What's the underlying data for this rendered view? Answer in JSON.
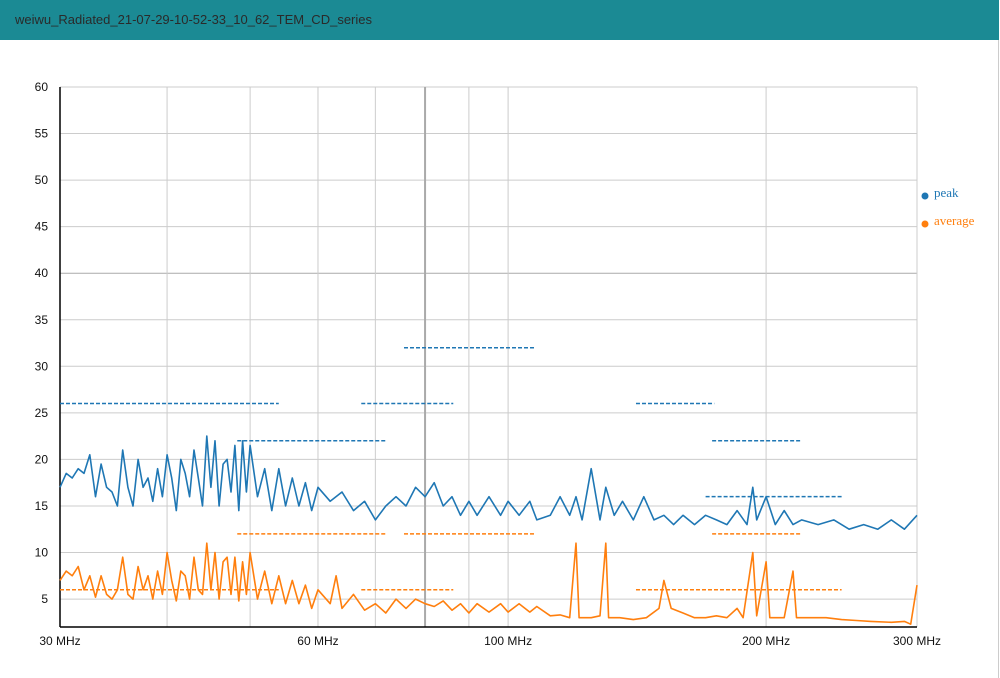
{
  "window": {
    "title": "weiwu_Radiated_21-07-29-10-52-33_10_62_TEM_CD_series"
  },
  "chart_data": {
    "type": "line",
    "xscale": "log",
    "xlim": [
      30,
      300
    ],
    "ylim": [
      2,
      60
    ],
    "grid": true,
    "legend_position": "right",
    "x_ticks": [
      {
        "v": 30,
        "label": "30 MHz"
      },
      {
        "v": 60,
        "label": "60 MHz"
      },
      {
        "v": 100,
        "label": "100 MHz"
      },
      {
        "v": 200,
        "label": "200 MHz"
      },
      {
        "v": 300,
        "label": "300 MHz"
      }
    ],
    "x_gridlines": [
      40,
      50,
      60,
      70,
      80,
      90,
      100,
      200
    ],
    "y_ticks": [
      5,
      10,
      15,
      20,
      25,
      30,
      35,
      40,
      45,
      50,
      55,
      60
    ],
    "colors": {
      "peak": "#1f77b4",
      "average": "#ff7f0e"
    },
    "series": [
      {
        "name": "peak",
        "color": "#1f77b4",
        "points": [
          [
            30,
            17
          ],
          [
            30.5,
            18.5
          ],
          [
            31,
            18
          ],
          [
            31.5,
            19
          ],
          [
            32,
            18.5
          ],
          [
            32.5,
            20.5
          ],
          [
            33,
            16
          ],
          [
            33.5,
            19.5
          ],
          [
            34,
            17
          ],
          [
            34.5,
            16.5
          ],
          [
            35,
            15
          ],
          [
            35.5,
            21
          ],
          [
            36,
            17
          ],
          [
            36.5,
            15
          ],
          [
            37,
            20
          ],
          [
            37.5,
            17
          ],
          [
            38,
            18
          ],
          [
            38.5,
            15.5
          ],
          [
            39,
            19
          ],
          [
            39.5,
            16
          ],
          [
            40,
            20.5
          ],
          [
            40.5,
            18
          ],
          [
            41,
            14.5
          ],
          [
            41.5,
            20
          ],
          [
            42,
            18.5
          ],
          [
            42.5,
            16
          ],
          [
            43,
            21
          ],
          [
            43.5,
            18
          ],
          [
            44,
            15
          ],
          [
            44.5,
            22.5
          ],
          [
            45,
            17
          ],
          [
            45.5,
            22
          ],
          [
            46,
            15
          ],
          [
            46.5,
            19.5
          ],
          [
            47,
            20
          ],
          [
            47.5,
            16.5
          ],
          [
            48,
            21.5
          ],
          [
            48.5,
            14.5
          ],
          [
            49,
            22
          ],
          [
            49.5,
            16.5
          ],
          [
            50,
            21.5
          ],
          [
            51,
            16
          ],
          [
            52,
            19
          ],
          [
            53,
            14.5
          ],
          [
            54,
            19
          ],
          [
            55,
            15
          ],
          [
            56,
            18
          ],
          [
            57,
            15
          ],
          [
            58,
            17.5
          ],
          [
            59,
            14.5
          ],
          [
            60,
            17
          ],
          [
            62,
            15.5
          ],
          [
            64,
            16.5
          ],
          [
            66,
            14.5
          ],
          [
            68,
            15.5
          ],
          [
            70,
            13.5
          ],
          [
            72,
            15
          ],
          [
            74,
            16
          ],
          [
            76,
            15
          ],
          [
            78,
            17
          ],
          [
            80,
            16
          ],
          [
            82,
            17.5
          ],
          [
            84,
            15
          ],
          [
            86,
            16
          ],
          [
            88,
            14
          ],
          [
            90,
            15.5
          ],
          [
            92,
            14
          ],
          [
            95,
            16
          ],
          [
            98,
            14
          ],
          [
            100,
            15.5
          ],
          [
            103,
            14
          ],
          [
            106,
            15.5
          ],
          [
            108,
            13.5
          ],
          [
            112,
            14
          ],
          [
            115,
            16
          ],
          [
            118,
            14
          ],
          [
            120,
            16
          ],
          [
            122,
            13.5
          ],
          [
            125,
            19
          ],
          [
            128,
            13.5
          ],
          [
            130,
            17
          ],
          [
            133,
            14
          ],
          [
            136,
            15.5
          ],
          [
            140,
            13.5
          ],
          [
            144,
            16
          ],
          [
            148,
            13.5
          ],
          [
            152,
            14
          ],
          [
            156,
            13
          ],
          [
            160,
            14
          ],
          [
            165,
            13
          ],
          [
            170,
            14
          ],
          [
            175,
            13.5
          ],
          [
            180,
            13
          ],
          [
            185,
            14.5
          ],
          [
            190,
            13
          ],
          [
            193,
            17
          ],
          [
            195,
            13.5
          ],
          [
            200,
            16
          ],
          [
            205,
            13
          ],
          [
            210,
            14.5
          ],
          [
            215,
            13
          ],
          [
            220,
            13.5
          ],
          [
            230,
            13
          ],
          [
            240,
            13.5
          ],
          [
            250,
            12.5
          ],
          [
            260,
            13
          ],
          [
            270,
            12.5
          ],
          [
            280,
            13.5
          ],
          [
            290,
            12.5
          ],
          [
            300,
            14
          ]
        ]
      },
      {
        "name": "average",
        "color": "#ff7f0e",
        "points": [
          [
            30,
            7
          ],
          [
            30.5,
            8
          ],
          [
            31,
            7.5
          ],
          [
            31.5,
            8.5
          ],
          [
            32,
            6
          ],
          [
            32.5,
            7.5
          ],
          [
            33,
            5.2
          ],
          [
            33.5,
            7.5
          ],
          [
            34,
            5.5
          ],
          [
            34.5,
            5
          ],
          [
            35,
            6
          ],
          [
            35.5,
            9.5
          ],
          [
            36,
            5.5
          ],
          [
            36.5,
            5
          ],
          [
            37,
            8.5
          ],
          [
            37.5,
            6
          ],
          [
            38,
            7.5
          ],
          [
            38.5,
            5
          ],
          [
            39,
            8
          ],
          [
            39.5,
            5.5
          ],
          [
            40,
            10
          ],
          [
            40.5,
            7
          ],
          [
            41,
            4.8
          ],
          [
            41.5,
            8
          ],
          [
            42,
            7.5
          ],
          [
            42.5,
            5
          ],
          [
            43,
            9.5
          ],
          [
            43.5,
            6
          ],
          [
            44,
            5.5
          ],
          [
            44.5,
            11
          ],
          [
            45,
            6
          ],
          [
            45.5,
            10
          ],
          [
            46,
            5
          ],
          [
            46.5,
            9
          ],
          [
            47,
            9.5
          ],
          [
            47.5,
            5.5
          ],
          [
            48,
            9.5
          ],
          [
            48.5,
            4.8
          ],
          [
            49,
            9
          ],
          [
            49.5,
            5.5
          ],
          [
            50,
            10
          ],
          [
            51,
            5
          ],
          [
            52,
            8
          ],
          [
            53,
            4.5
          ],
          [
            54,
            7.5
          ],
          [
            55,
            4.5
          ],
          [
            56,
            7
          ],
          [
            57,
            4.5
          ],
          [
            58,
            6.5
          ],
          [
            59,
            4
          ],
          [
            60,
            6
          ],
          [
            62,
            4.5
          ],
          [
            63,
            7.5
          ],
          [
            64,
            4
          ],
          [
            66,
            5.5
          ],
          [
            68,
            3.8
          ],
          [
            70,
            4.5
          ],
          [
            72,
            3.5
          ],
          [
            74,
            5
          ],
          [
            76,
            4
          ],
          [
            78,
            5
          ],
          [
            80,
            4.5
          ],
          [
            82,
            4.2
          ],
          [
            84,
            4.8
          ],
          [
            86,
            3.8
          ],
          [
            88,
            4.5
          ],
          [
            90,
            3.5
          ],
          [
            92,
            4.5
          ],
          [
            95,
            3.6
          ],
          [
            98,
            4.5
          ],
          [
            100,
            3.6
          ],
          [
            103,
            4.5
          ],
          [
            106,
            3.6
          ],
          [
            108,
            4.2
          ],
          [
            112,
            3.2
          ],
          [
            115,
            3.3
          ],
          [
            118,
            3
          ],
          [
            120,
            11
          ],
          [
            121,
            3
          ],
          [
            125,
            3
          ],
          [
            128,
            3.2
          ],
          [
            130,
            11
          ],
          [
            131,
            3
          ],
          [
            135,
            3
          ],
          [
            140,
            2.8
          ],
          [
            145,
            3
          ],
          [
            150,
            4
          ],
          [
            152,
            7
          ],
          [
            155,
            4
          ],
          [
            160,
            3.5
          ],
          [
            165,
            3
          ],
          [
            170,
            3
          ],
          [
            175,
            3.2
          ],
          [
            180,
            3
          ],
          [
            185,
            4
          ],
          [
            188,
            3
          ],
          [
            193,
            10
          ],
          [
            195,
            3.2
          ],
          [
            200,
            9
          ],
          [
            202,
            3
          ],
          [
            210,
            3
          ],
          [
            215,
            8
          ],
          [
            217,
            3
          ],
          [
            225,
            3
          ],
          [
            235,
            3
          ],
          [
            245,
            2.8
          ],
          [
            255,
            2.7
          ],
          [
            265,
            2.6
          ],
          [
            280,
            2.5
          ],
          [
            290,
            2.6
          ],
          [
            295,
            2.3
          ],
          [
            300,
            6.5
          ]
        ]
      }
    ],
    "limit_lines": [
      {
        "series": "peak",
        "from": 30,
        "to": 54,
        "y": 26
      },
      {
        "series": "peak",
        "from": 48.3,
        "to": 72,
        "y": 22
      },
      {
        "series": "peak",
        "from": 67.4,
        "to": 86.3,
        "y": 26
      },
      {
        "series": "peak",
        "from": 75.6,
        "to": 107.5,
        "y": 32
      },
      {
        "series": "peak",
        "from": 141,
        "to": 174,
        "y": 26
      },
      {
        "series": "peak",
        "from": 173,
        "to": 220,
        "y": 22
      },
      {
        "series": "peak",
        "from": 170,
        "to": 245,
        "y": 16
      },
      {
        "series": "average",
        "from": 30,
        "to": 54,
        "y": 6
      },
      {
        "series": "average",
        "from": 48.3,
        "to": 72,
        "y": 12
      },
      {
        "series": "average",
        "from": 67.4,
        "to": 86.3,
        "y": 6
      },
      {
        "series": "average",
        "from": 75.6,
        "to": 107.5,
        "y": 12
      },
      {
        "series": "average",
        "from": 141,
        "to": 245,
        "y": 6
      },
      {
        "series": "average",
        "from": 173,
        "to": 220,
        "y": 12
      }
    ]
  }
}
